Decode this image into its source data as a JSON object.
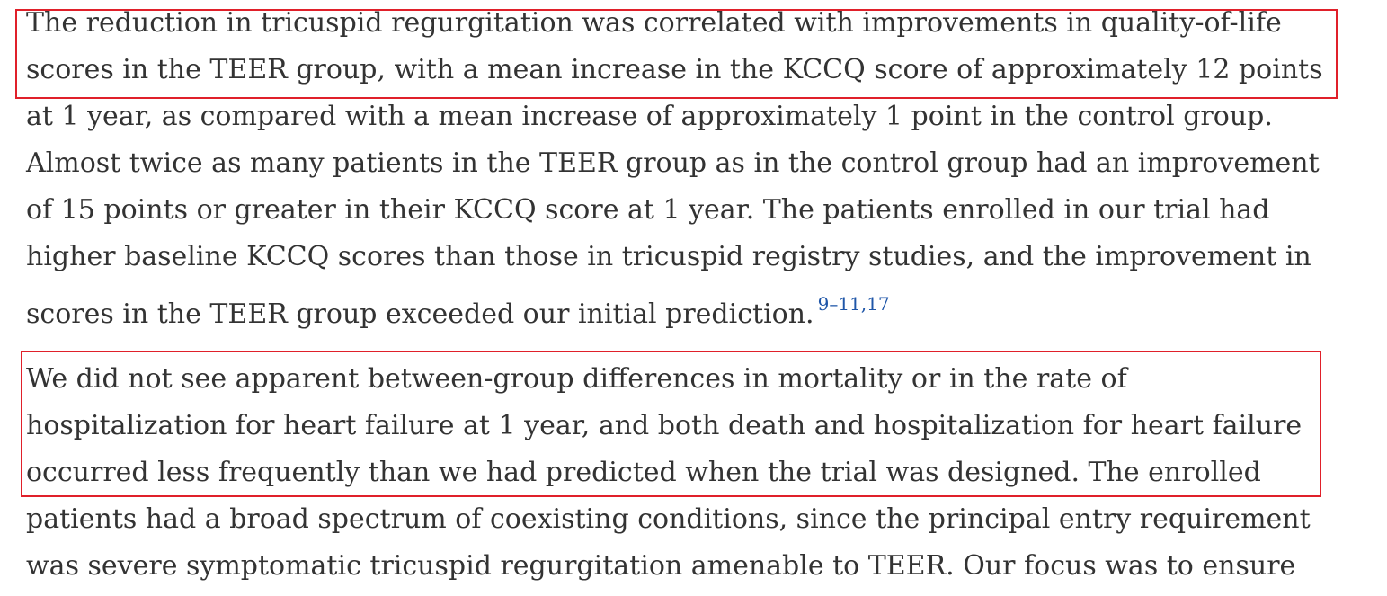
{
  "paragraph_1": {
    "lines": [
      "The reduction in tricuspid regurgitation was correlated with improvements in quality-of-life",
      "scores in the TEER group, with a mean increase in the KCCQ score of approximately 12 points",
      "at 1 year, as compared with a mean increase of approximately 1 point in the control group.",
      "Almost twice as many patients in the TEER group as in the control group had an improvement",
      "of 15 points or greater in their KCCQ score at 1 year. The patients enrolled in our trial had",
      "higher baseline KCCQ scores than those in tricuspid registry studies, and the improvement in",
      "scores in the TEER group exceeded our initial prediction."
    ],
    "reference": "9–11,17"
  },
  "paragraph_2": {
    "lines": [
      "We did not see apparent between-group differences in mortality or in the rate of",
      "hospitalization for heart failure at 1 year, and both death and hospitalization for heart failure",
      "occurred less frequently than we had predicted when the trial was designed. The enrolled",
      "patients had a broad spectrum of coexisting conditions, since the principal entry requirement",
      "was severe symptomatic tricuspid regurgitation amenable to TEER. Our focus was to ensure"
    ]
  },
  "colors": {
    "body_text": "#333333",
    "reference_link": "#1f56a8",
    "highlight_border": "#e0202a"
  }
}
